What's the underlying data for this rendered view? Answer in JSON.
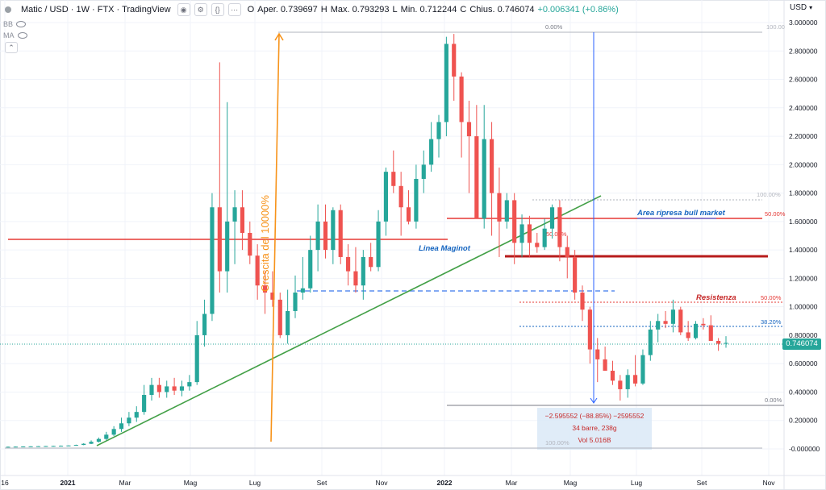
{
  "header": {
    "symbol": "Matic / USD · 1W · FTX · TradingView",
    "ohlc": {
      "open_label": "O",
      "open": "Aper. 0.739697",
      "high_label": "H",
      "high": "Max. 0.793293",
      "low_label": "L",
      "low": "Min. 0.712244",
      "close_label": "C",
      "close": "Chius. 0.746074",
      "change": "+0.006341 (+0.86%)"
    },
    "icon_labels": [
      "◉",
      "⚙",
      "{}",
      "⋯"
    ],
    "indicator_1": "BB",
    "indicator_2": "MA",
    "currency": "USD"
  },
  "chart_data": {
    "type": "candlestick",
    "timeframe": "1W",
    "x_tick_labels": [
      "16",
      "2021",
      "Mar",
      "Mag",
      "Lug",
      "Set",
      "Nov",
      "2022",
      "Mar",
      "Mag",
      "Lug",
      "Set",
      "Nov"
    ],
    "y_tick_labels": [
      "3.000000",
      "2.800000",
      "2.600000",
      "2.400000",
      "2.200000",
      "2.000000",
      "1.800000",
      "1.600000",
      "1.400000",
      "1.200000",
      "1.000000",
      "0.800000",
      "0.600000",
      "0.400000",
      "0.200000",
      "-0.000000"
    ],
    "ylim": [
      -0.05,
      3.05
    ],
    "last_price": "0.746074",
    "candles": [
      [
        0.015,
        0.016,
        0.014,
        0.015
      ],
      [
        0.015,
        0.017,
        0.014,
        0.016
      ],
      [
        0.016,
        0.018,
        0.015,
        0.017
      ],
      [
        0.017,
        0.019,
        0.016,
        0.018
      ],
      [
        0.018,
        0.02,
        0.017,
        0.019
      ],
      [
        0.019,
        0.021,
        0.018,
        0.02
      ],
      [
        0.02,
        0.022,
        0.019,
        0.021
      ],
      [
        0.021,
        0.024,
        0.02,
        0.022
      ],
      [
        0.022,
        0.025,
        0.021,
        0.024
      ],
      [
        0.024,
        0.03,
        0.023,
        0.028
      ],
      [
        0.028,
        0.04,
        0.026,
        0.036
      ],
      [
        0.036,
        0.06,
        0.034,
        0.05
      ],
      [
        0.05,
        0.08,
        0.045,
        0.07
      ],
      [
        0.07,
        0.12,
        0.06,
        0.1
      ],
      [
        0.1,
        0.16,
        0.09,
        0.14
      ],
      [
        0.14,
        0.22,
        0.12,
        0.18
      ],
      [
        0.18,
        0.26,
        0.16,
        0.22
      ],
      [
        0.22,
        0.3,
        0.19,
        0.26
      ],
      [
        0.26,
        0.45,
        0.24,
        0.38
      ],
      [
        0.38,
        0.5,
        0.34,
        0.45
      ],
      [
        0.45,
        0.5,
        0.36,
        0.4
      ],
      [
        0.4,
        0.48,
        0.36,
        0.44
      ],
      [
        0.44,
        0.5,
        0.38,
        0.41
      ],
      [
        0.41,
        0.48,
        0.37,
        0.44
      ],
      [
        0.44,
        0.52,
        0.41,
        0.47
      ],
      [
        0.47,
        0.9,
        0.45,
        0.8
      ],
      [
        0.8,
        1.05,
        0.72,
        0.95
      ],
      [
        0.95,
        1.8,
        0.9,
        1.7
      ],
      [
        1.7,
        2.72,
        1.1,
        1.25
      ],
      [
        1.25,
        2.44,
        1.1,
        1.6
      ],
      [
        1.6,
        1.82,
        1.3,
        1.7
      ],
      [
        1.7,
        1.82,
        1.4,
        1.52
      ],
      [
        1.52,
        1.6,
        1.3,
        1.36
      ],
      [
        1.36,
        1.44,
        1.05,
        1.15
      ],
      [
        1.15,
        1.25,
        0.95,
        1.1
      ],
      [
        1.1,
        1.25,
        1.0,
        1.05
      ],
      [
        1.05,
        1.1,
        0.78,
        0.8
      ],
      [
        0.8,
        1.12,
        0.74,
        0.97
      ],
      [
        0.97,
        1.22,
        0.92,
        1.1
      ],
      [
        1.1,
        1.35,
        1.05,
        1.13
      ],
      [
        1.13,
        1.5,
        1.1,
        1.4
      ],
      [
        1.4,
        1.72,
        1.25,
        1.6
      ],
      [
        1.6,
        1.72,
        1.34,
        1.4
      ],
      [
        1.4,
        1.7,
        1.3,
        1.68
      ],
      [
        1.68,
        1.72,
        1.3,
        1.35
      ],
      [
        1.35,
        1.44,
        1.15,
        1.25
      ],
      [
        1.25,
        1.42,
        1.1,
        1.15
      ],
      [
        1.15,
        1.4,
        1.05,
        1.35
      ],
      [
        1.35,
        1.45,
        1.25,
        1.28
      ],
      [
        1.28,
        1.68,
        1.25,
        1.6
      ],
      [
        1.6,
        1.98,
        1.5,
        1.95
      ],
      [
        1.95,
        2.1,
        1.8,
        1.85
      ],
      [
        1.85,
        1.95,
        1.5,
        1.7
      ],
      [
        1.7,
        1.82,
        1.58,
        1.6
      ],
      [
        1.6,
        2.0,
        1.55,
        1.9
      ],
      [
        1.9,
        2.1,
        1.8,
        2.0
      ],
      [
        2.0,
        2.3,
        1.95,
        2.18
      ],
      [
        2.18,
        2.35,
        2.05,
        2.3
      ],
      [
        2.3,
        2.9,
        2.2,
        2.85
      ],
      [
        2.85,
        2.92,
        2.45,
        2.62
      ],
      [
        2.62,
        2.65,
        2.05,
        2.3
      ],
      [
        2.3,
        2.45,
        1.8,
        2.2
      ],
      [
        2.2,
        2.42,
        1.65,
        1.62
      ],
      [
        1.62,
        2.42,
        1.55,
        2.18
      ],
      [
        2.18,
        2.3,
        1.5,
        1.8
      ],
      [
        1.8,
        1.98,
        1.35,
        1.6
      ],
      [
        1.6,
        1.8,
        1.55,
        1.75
      ],
      [
        1.75,
        1.8,
        1.3,
        1.45
      ],
      [
        1.45,
        1.65,
        1.35,
        1.58
      ],
      [
        1.58,
        1.64,
        1.35,
        1.45
      ],
      [
        1.45,
        1.52,
        1.38,
        1.42
      ],
      [
        1.42,
        1.62,
        1.4,
        1.55
      ],
      [
        1.55,
        1.72,
        1.48,
        1.7
      ],
      [
        1.7,
        1.75,
        1.32,
        1.42
      ],
      [
        1.42,
        1.5,
        1.2,
        1.35
      ],
      [
        1.35,
        1.4,
        1.05,
        1.1
      ],
      [
        1.1,
        1.15,
        0.9,
        0.98
      ],
      [
        0.98,
        1.0,
        0.6,
        0.7
      ],
      [
        0.7,
        0.78,
        0.47,
        0.63
      ],
      [
        0.63,
        0.72,
        0.55,
        0.55
      ],
      [
        0.55,
        0.62,
        0.45,
        0.48
      ],
      [
        0.48,
        0.52,
        0.34,
        0.42
      ],
      [
        0.42,
        0.56,
        0.36,
        0.52
      ],
      [
        0.52,
        0.66,
        0.44,
        0.46
      ],
      [
        0.46,
        0.7,
        0.45,
        0.66
      ],
      [
        0.66,
        0.9,
        0.62,
        0.84
      ],
      [
        0.84,
        0.95,
        0.75,
        0.9
      ],
      [
        0.9,
        0.97,
        0.85,
        0.88
      ],
      [
        0.88,
        1.05,
        0.82,
        0.98
      ],
      [
        0.98,
        1.0,
        0.8,
        0.82
      ],
      [
        0.82,
        0.9,
        0.76,
        0.78
      ],
      [
        0.78,
        0.9,
        0.77,
        0.88
      ],
      [
        0.88,
        0.92,
        0.84,
        0.87
      ],
      [
        0.87,
        0.94,
        0.78,
        0.76
      ],
      [
        0.76,
        0.78,
        0.69,
        0.74
      ],
      [
        0.74,
        0.793,
        0.712,
        0.746
      ]
    ],
    "annotations": {
      "growth_label": "Crescita del 10000%",
      "maginot_label": "Linea Maginot",
      "bull_area_label": "Area ripresa bull market",
      "resistance_label": "Resistenza",
      "fib_top_0": "0.00%",
      "fib_top_100": "100.00",
      "fib_mid_100": "100.00%",
      "fib_mid_50": "50.00%",
      "fib_maginot_50": "50.00%",
      "fib_res_50": "50.00%",
      "fib_res_382": "38.20%",
      "fib_bottom_0": "0.00%",
      "measure_line1": "−2.595552 (−88.85%) −2595552",
      "measure_line2": "34 barre, 238g",
      "measure_line3": "Vol 5.016B",
      "measure_bottom": "100.00%"
    },
    "colors": {
      "up": "#26a69a",
      "down": "#ef5350",
      "trendline": "#43a047",
      "orange": "#f7931a",
      "red_line": "#e53935",
      "dark_red": "#b71c1c",
      "blue": "#2962ff",
      "measure_bg": "#dbe9f7",
      "grid": "#f0f3fa"
    },
    "grid": true
  }
}
